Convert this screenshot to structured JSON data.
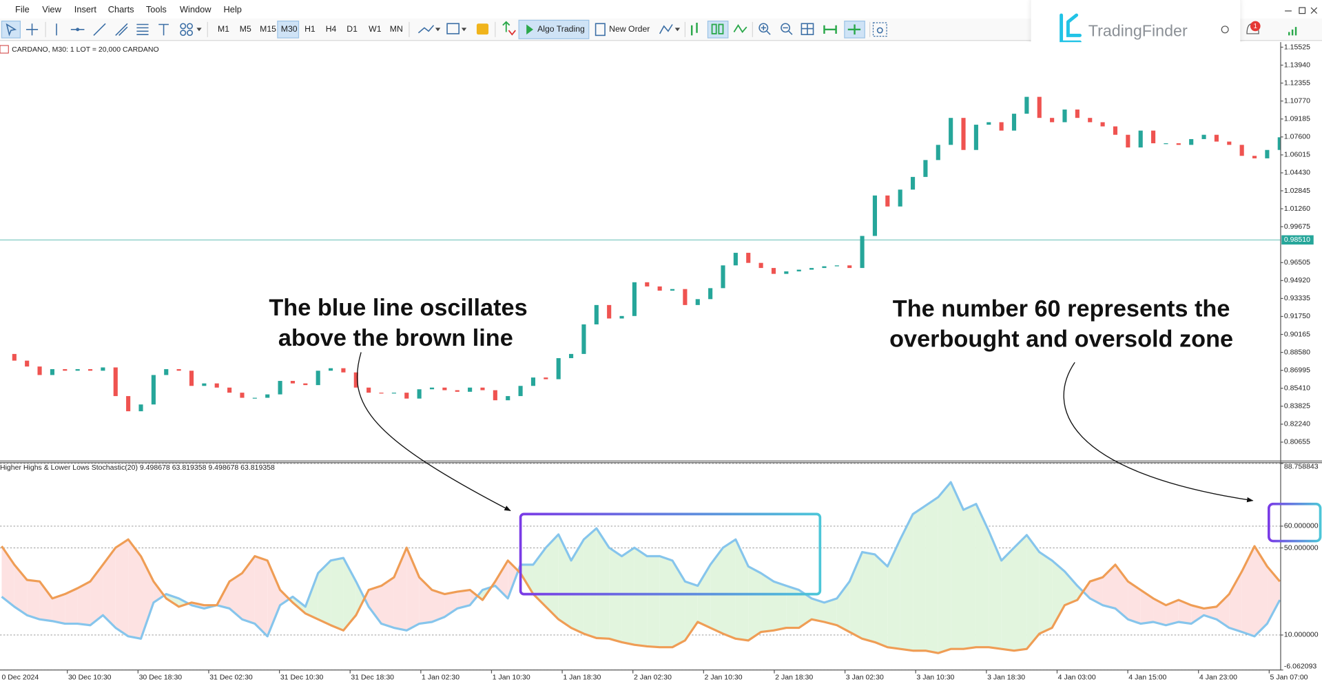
{
  "menu": [
    "File",
    "View",
    "Insert",
    "Charts",
    "Tools",
    "Window",
    "Help"
  ],
  "toolbar": {
    "timeframes": [
      "M1",
      "M5",
      "M15",
      "M30",
      "H1",
      "H4",
      "D1",
      "W1",
      "MN"
    ],
    "algo_trading": "Algo Trading",
    "new_order": "New Order"
  },
  "logo": "TradingFinder",
  "notification_badge": 1,
  "annotations": [
    {
      "lines": [
        "The blue line oscillates",
        "above the brown line"
      ]
    },
    {
      "lines": [
        "The number 60 represents the",
        "overbought and oversold zone"
      ]
    }
  ],
  "chart_data": [
    {
      "type": "candlestick",
      "title": "CARDANO, M30:  1 LOT = 20,000 CARDANO",
      "up_color": "#26a69a",
      "down_color": "#ef5350",
      "ylim": [
        0.7899,
        1.1597
      ],
      "yticks": [
        1.15525,
        {
          "value": 1.1394,
          "label": "1.13940"
        },
        1.12355,
        {
          "value": 1.1077,
          "label": "1.10770"
        },
        1.09185,
        {
          "value": 1.076,
          "label": "1.07600"
        },
        1.06015,
        {
          "value": 1.0443,
          "label": "1.04430"
        },
        1.02845,
        {
          "value": 1.0126,
          "label": "1.01260"
        },
        0.99675,
        0.96505,
        {
          "value": 0.9492,
          "label": "0.94920"
        },
        0.93335,
        {
          "value": 0.9175,
          "label": "0.91750"
        },
        0.90165,
        {
          "value": 0.8858,
          "label": "0.88580"
        },
        0.86995,
        {
          "value": 0.8541,
          "label": "0.85410"
        },
        0.83825,
        {
          "value": 0.8224,
          "label": "0.82240"
        },
        0.80655
      ],
      "current_price": {
        "value": 0.9851,
        "label": "0.98510"
      },
      "close": [
        0.8844,
        0.8785,
        0.8733,
        0.8658,
        0.871,
        0.8696,
        0.871,
        0.8696,
        0.8725,
        0.8472,
        0.8338,
        0.8398,
        0.8658,
        0.871,
        0.8696,
        0.8562,
        0.8584,
        0.8547,
        0.8502,
        0.8457,
        0.8457,
        0.8487,
        0.8606,
        0.8584,
        0.8569,
        0.8696,
        0.8718,
        0.8681,
        0.8547,
        0.8502,
        0.8495,
        0.8502,
        0.845,
        0.8532,
        0.8547,
        0.8524,
        0.851,
        0.8547,
        0.8524,
        0.8435,
        0.8472,
        0.8562,
        0.8636,
        0.8621,
        0.8807,
        0.8844,
        0.9105,
        0.9276,
        0.9157,
        0.9179,
        0.9477,
        0.944,
        0.9403,
        0.9417,
        0.9276,
        0.9328,
        0.9425,
        0.9626,
        0.9737,
        0.9648,
        0.9603,
        0.9551,
        0.9573,
        0.9588,
        0.9603,
        0.9618,
        0.9626,
        0.9603,
        0.9886,
        1.0243,
        1.0146,
        1.0295,
        1.0407,
        1.0556,
        1.069,
        1.0928,
        1.0645,
        1.0868,
        1.089,
        1.0816,
        1.0965,
        1.1114,
        1.0928,
        1.089,
        1.1002,
        1.0928,
        1.089,
        1.0853,
        1.0779,
        1.0667,
        1.0816,
        1.0704,
        1.0704,
        1.069,
        1.0741,
        1.0779,
        1.0719,
        1.069,
        1.0593,
        1.0571,
        1.0645,
        1.0757
      ]
    },
    {
      "type": "line",
      "title": "Higher Highs & Lower Lows Stochastic(20) 9.498678 63.819358 9.498678 63.819358",
      "ylim": [
        -6.062093,
        88.758843
      ],
      "yticks": [
        88.758843,
        {
          "value": 60,
          "label": "60.000000"
        },
        {
          "value": 50,
          "label": "50.000000"
        },
        {
          "value": 10,
          "label": "10.000000"
        },
        -6.062093
      ],
      "fill_up_color": "#e2f5de",
      "fill_down_color": "#fde2e2",
      "xticks": [
        "0 Dec 2024",
        "30 Dec 10:30",
        "30 Dec 18:30",
        "31 Dec 02:30",
        "31 Dec 10:30",
        "31 Dec 18:30",
        "1 Jan 02:30",
        "1 Jan 10:30",
        "1 Jan 18:30",
        "2 Jan 02:30",
        "2 Jan 10:30",
        "2 Jan 18:30",
        "3 Jan 02:30",
        "3 Jan 10:30",
        "3 Jan 18:30",
        "4 Jan 03:00",
        "4 Jan 15:00",
        "4 Jan 23:00",
        "5 Jan 07:00"
      ],
      "series": [
        {
          "color": "#86c5ec",
          "values": [
            27.6,
            23.0,
            19.1,
            17.2,
            16.4,
            15.2,
            15.2,
            14.5,
            19.1,
            13.3,
            9.4,
            8.3,
            24.9,
            28.8,
            26.8,
            23.7,
            22.2,
            23.7,
            22.2,
            17.2,
            15.2,
            9.4,
            23.7,
            27.6,
            23.0,
            38.4,
            44.2,
            45.4,
            34.6,
            23.0,
            15.2,
            13.3,
            12.1,
            15.2,
            16.0,
            18.3,
            22.2,
            23.7,
            30.7,
            32.6,
            26.8,
            42.3,
            42.3,
            50.1,
            56.2,
            44.2,
            53.9,
            59.0,
            50.1,
            46.2,
            50.1,
            46.2,
            46.2,
            44.2,
            34.6,
            32.6,
            42.3,
            50.1,
            53.9,
            41.5,
            38.4,
            34.6,
            32.6,
            30.7,
            26.8,
            24.9,
            26.8,
            34.6,
            48.1,
            47.0,
            41.5,
            53.9,
            65.5,
            69.4,
            73.3,
            80.2,
            67.5,
            70.2,
            57.8,
            44.2,
            50.1,
            55.9,
            48.1,
            44.2,
            39.2,
            32.6,
            26.8,
            23.7,
            22.2,
            17.2,
            15.2,
            16.0,
            14.5,
            16.0,
            15.2,
            19.1,
            17.2,
            13.3,
            11.4,
            9.4,
            15.2,
            26.1
          ]
        },
        {
          "color": "#ef9d55",
          "values": [
            50.8,
            42.3,
            35.3,
            34.6,
            26.8,
            28.8,
            31.5,
            34.6,
            42.3,
            50.1,
            53.9,
            46.2,
            34.6,
            26.8,
            23.0,
            24.9,
            23.7,
            23.7,
            34.6,
            38.4,
            46.2,
            44.2,
            30.7,
            24.9,
            19.9,
            17.2,
            14.5,
            12.1,
            19.1,
            30.7,
            32.6,
            36.5,
            50.1,
            36.5,
            30.7,
            28.8,
            29.9,
            30.7,
            26.1,
            34.6,
            44.2,
            38.4,
            28.8,
            23.0,
            17.2,
            13.3,
            10.6,
            8.6,
            8.3,
            6.7,
            5.5,
            4.8,
            4.4,
            4.4,
            7.5,
            16.0,
            13.3,
            10.6,
            8.3,
            7.5,
            11.4,
            12.1,
            13.3,
            13.3,
            17.2,
            16.0,
            14.5,
            11.4,
            8.3,
            6.7,
            4.4,
            3.6,
            2.8,
            2.8,
            1.7,
            3.6,
            3.6,
            4.4,
            4.4,
            3.6,
            2.8,
            3.6,
            10.6,
            13.3,
            23.7,
            26.1,
            34.6,
            36.5,
            42.3,
            34.6,
            30.7,
            26.8,
            23.7,
            26.1,
            23.7,
            22.2,
            23.0,
            28.8,
            39.2,
            50.8,
            41.5,
            34.6
          ]
        }
      ]
    }
  ]
}
